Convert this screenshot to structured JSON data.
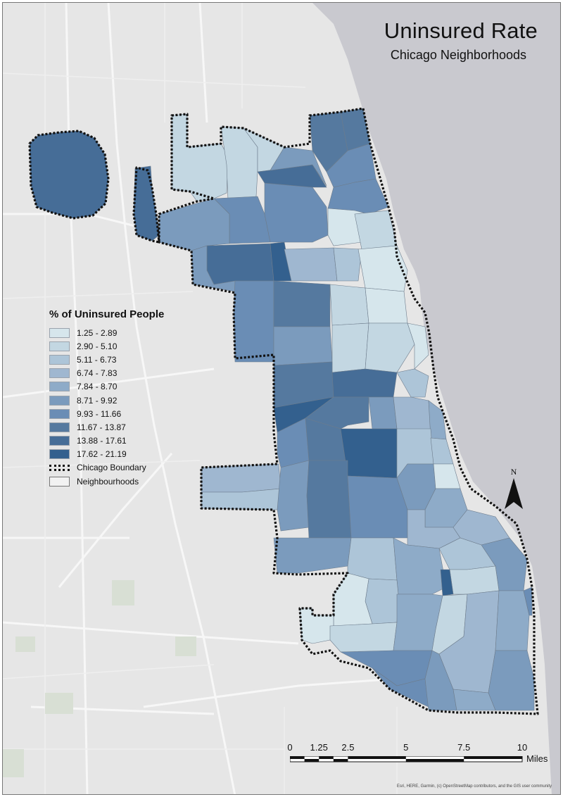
{
  "map": {
    "title": "Uninsured Rate",
    "subtitle": "Chicago Neighborhoods",
    "attribution": "Esri, HERE, Garmin, (c) OpenStreetMap contributors, and the GIS user community",
    "colors": {
      "lake": "#c9c9cf",
      "land": "#e6e6e6",
      "road": "#f7f7f7",
      "park": "#d6ded2",
      "boundary": "#111111",
      "neighborhood_line": "#6d7c8c"
    }
  },
  "legend": {
    "title": "% of Uninsured People",
    "classes": [
      {
        "label": "1.25 - 2.89",
        "color": "#d6e6ec"
      },
      {
        "label": "2.90 - 5.10",
        "color": "#c3d7e2"
      },
      {
        "label": "5.11 - 6.73",
        "color": "#adc5d8"
      },
      {
        "label": "6.74 - 7.83",
        "color": "#9fb7d0"
      },
      {
        "label": "7.84 - 8.70",
        "color": "#8eabc8"
      },
      {
        "label": "8.71 - 9.92",
        "color": "#7b9bbd"
      },
      {
        "label": "9.93 - 11.66",
        "color": "#6a8db5"
      },
      {
        "label": "11.67 - 13.87",
        "color": "#55799f"
      },
      {
        "label": "13.88 - 17.61",
        "color": "#466d97"
      },
      {
        "label": "17.62 - 21.19",
        "color": "#33608e"
      }
    ],
    "boundary_label": "Chicago Boundary",
    "neighborhoods_label": "Neighbourhoods"
  },
  "north_arrow": {
    "label": "N"
  },
  "scalebar": {
    "ticks": [
      "0",
      "1.25",
      "2.5",
      "5",
      "7.5",
      "10"
    ],
    "unit": "Miles"
  }
}
